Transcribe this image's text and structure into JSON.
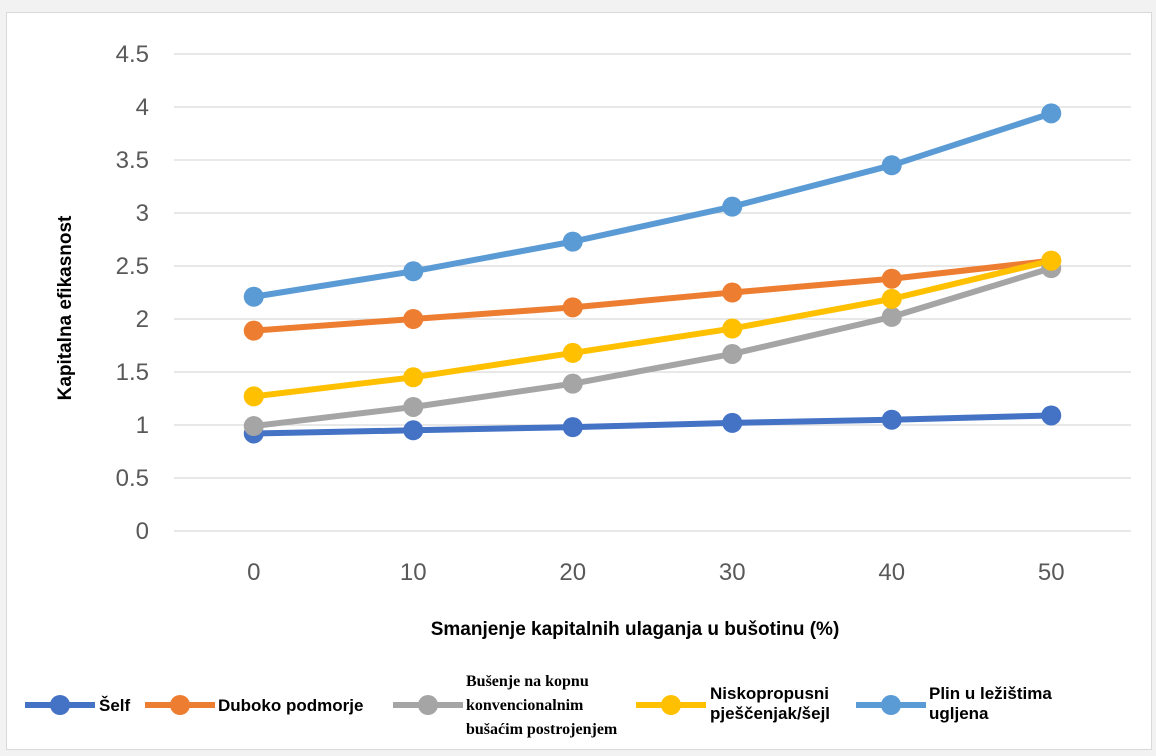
{
  "chart_data": {
    "type": "line",
    "title": "",
    "xlabel": "Smanjenje kapitalnih ulaganja u bušotinu (%)",
    "ylabel": "Kapitalna efikasnost",
    "x": [
      0,
      10,
      20,
      30,
      40,
      50
    ],
    "x_tick_labels": [
      "0",
      "10",
      "20",
      "30",
      "40",
      "50"
    ],
    "y_tick_labels": [
      "0",
      "0.5",
      "1",
      "1.5",
      "2",
      "2.5",
      "3",
      "3.5",
      "4",
      "4.5"
    ],
    "ylim": [
      0,
      4.5
    ],
    "grid": "horizontal",
    "legend_position": "bottom",
    "series": [
      {
        "name": "Šelf",
        "color": "#4472c4",
        "values": [
          0.92,
          0.95,
          0.98,
          1.02,
          1.05,
          1.09
        ]
      },
      {
        "name": "Duboko podmorje",
        "color": "#ed7d31",
        "values": [
          1.89,
          2.0,
          2.11,
          2.25,
          2.38,
          2.55
        ]
      },
      {
        "name_lines": [
          "Bušenje na kopnu",
          "konvencionalnim",
          "bušaćim postrojenjem"
        ],
        "color": "#a5a5a5",
        "values": [
          0.99,
          1.17,
          1.39,
          1.67,
          2.02,
          2.48
        ]
      },
      {
        "name_lines": [
          "Niskopropusni",
          "pješčenjak/šejl"
        ],
        "color": "#ffc000",
        "values": [
          1.27,
          1.45,
          1.68,
          1.91,
          2.19,
          2.55
        ]
      },
      {
        "name_lines": [
          "Plin u ležištima",
          "ugljena"
        ],
        "color": "#5b9bd5",
        "values": [
          2.21,
          2.45,
          2.73,
          3.06,
          3.45,
          3.94
        ]
      }
    ]
  }
}
